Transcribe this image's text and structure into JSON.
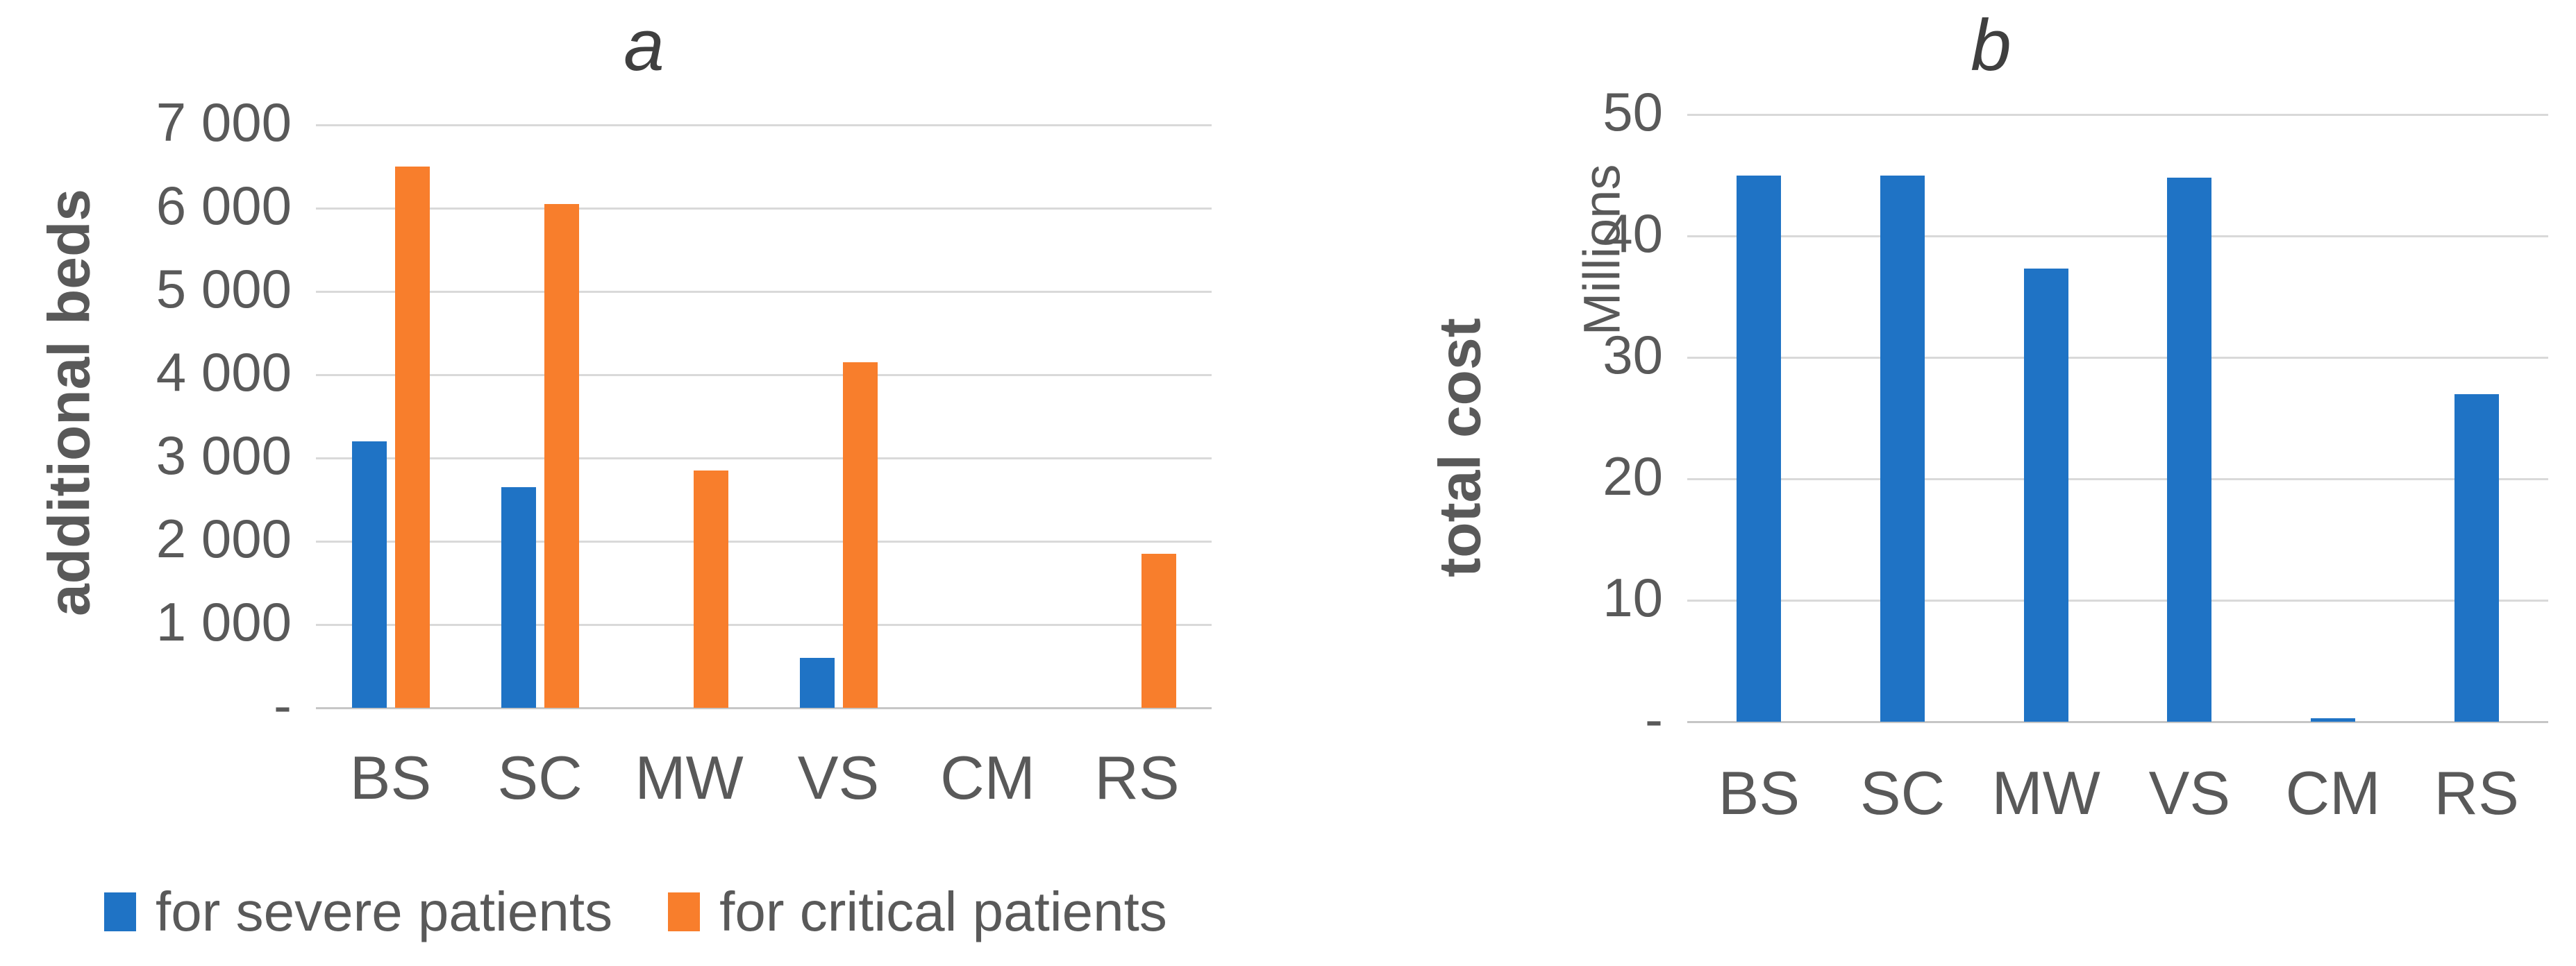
{
  "chart_data": [
    {
      "type": "bar",
      "panel_label": "a",
      "title": "a",
      "ylabel": "additional beds",
      "categories": [
        "BS",
        "SC",
        "MW",
        "VS",
        "CM",
        "RS"
      ],
      "series": [
        {
          "name": "for severe patients",
          "color": "#1F73C5",
          "values": [
            3200,
            2650,
            0,
            600,
            0,
            0
          ]
        },
        {
          "name": "for critical patients",
          "color": "#F87E2C",
          "values": [
            6500,
            6050,
            2850,
            4150,
            0,
            1850
          ]
        }
      ],
      "ylim": [
        0,
        7000
      ],
      "ytick_values": [
        0,
        1000,
        2000,
        3000,
        4000,
        5000,
        6000,
        7000
      ],
      "ytick_labels": [
        "-",
        "1 000",
        "2 000",
        "3 000",
        "4 000",
        "5 000",
        "6 000",
        "7 000"
      ],
      "grid": true,
      "legend_position": "bottom-left"
    },
    {
      "type": "bar",
      "panel_label": "b",
      "title": "b",
      "ylabel": "total cost",
      "y_units_label": "Millions",
      "categories": [
        "BS",
        "SC",
        "MW",
        "VS",
        "CM",
        "RS"
      ],
      "series": [
        {
          "name": "total cost",
          "color": "#1F73C5",
          "values": [
            45,
            45,
            37.3,
            44.8,
            0.3,
            27
          ]
        }
      ],
      "ylim": [
        0,
        50
      ],
      "ytick_values": [
        0,
        10,
        20,
        30,
        40,
        50
      ],
      "ytick_labels": [
        "-",
        "10",
        "20",
        "30",
        "40",
        "50"
      ],
      "grid": true,
      "legend_position": "none"
    }
  ],
  "colors": {
    "bar_blue": "#1F73C5",
    "bar_orange": "#F87E2C",
    "gridline": "#D9D9D9",
    "axis_line": "#C6C6C6",
    "text_gray": "#595959",
    "title_gray": "#404040"
  }
}
